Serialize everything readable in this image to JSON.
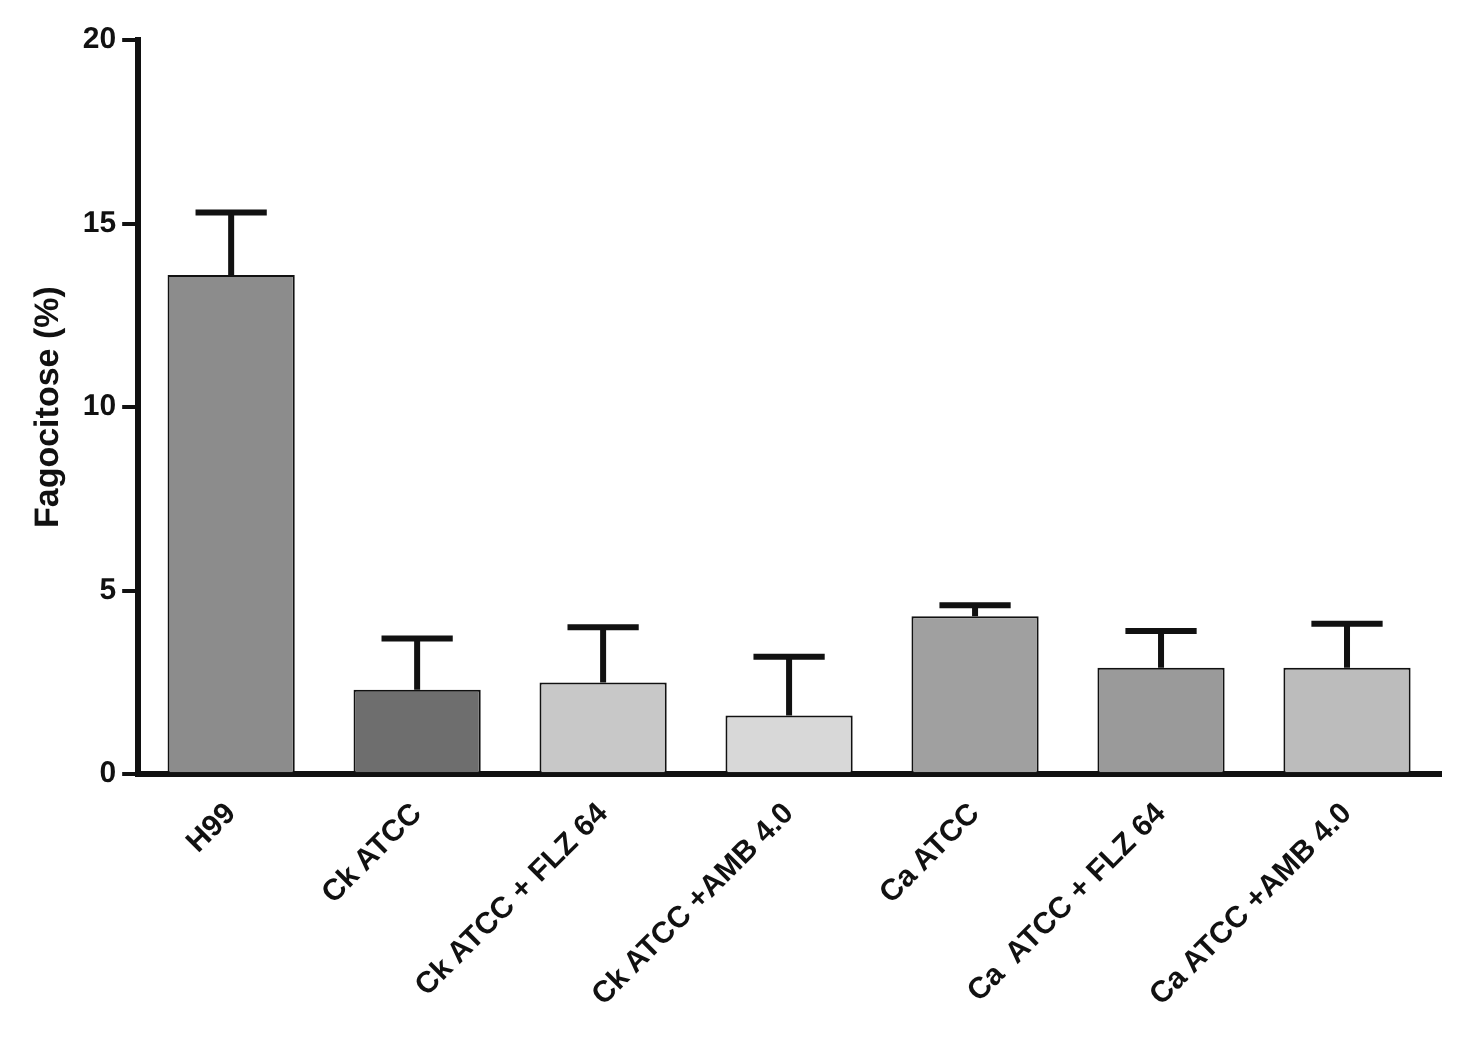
{
  "chart_data": {
    "type": "bar",
    "ylabel": "Fagocitose (%)",
    "categories": [
      "H99",
      "Ck ATCC",
      "Ck ATCC + FLZ 64",
      "Ck ATCC +AMB 4.0",
      "Ca ATCC",
      "Ca  ATCC + FLZ 64",
      "Ca ATCC +AMB 4.0"
    ],
    "values": [
      13.6,
      2.3,
      2.5,
      1.6,
      4.3,
      2.9,
      2.9
    ],
    "errors": [
      1.7,
      1.4,
      1.5,
      1.6,
      0.3,
      1.0,
      1.2
    ],
    "colors": [
      "#8c8c8c",
      "#6e6e6e",
      "#c8c8c8",
      "#d8d8d8",
      "#a0a0a0",
      "#9a9a9a",
      "#bcbcbc"
    ],
    "ylim": [
      0,
      20
    ],
    "yticks": [
      0,
      5,
      10,
      15,
      20
    ],
    "grid": false,
    "legend": false
  }
}
